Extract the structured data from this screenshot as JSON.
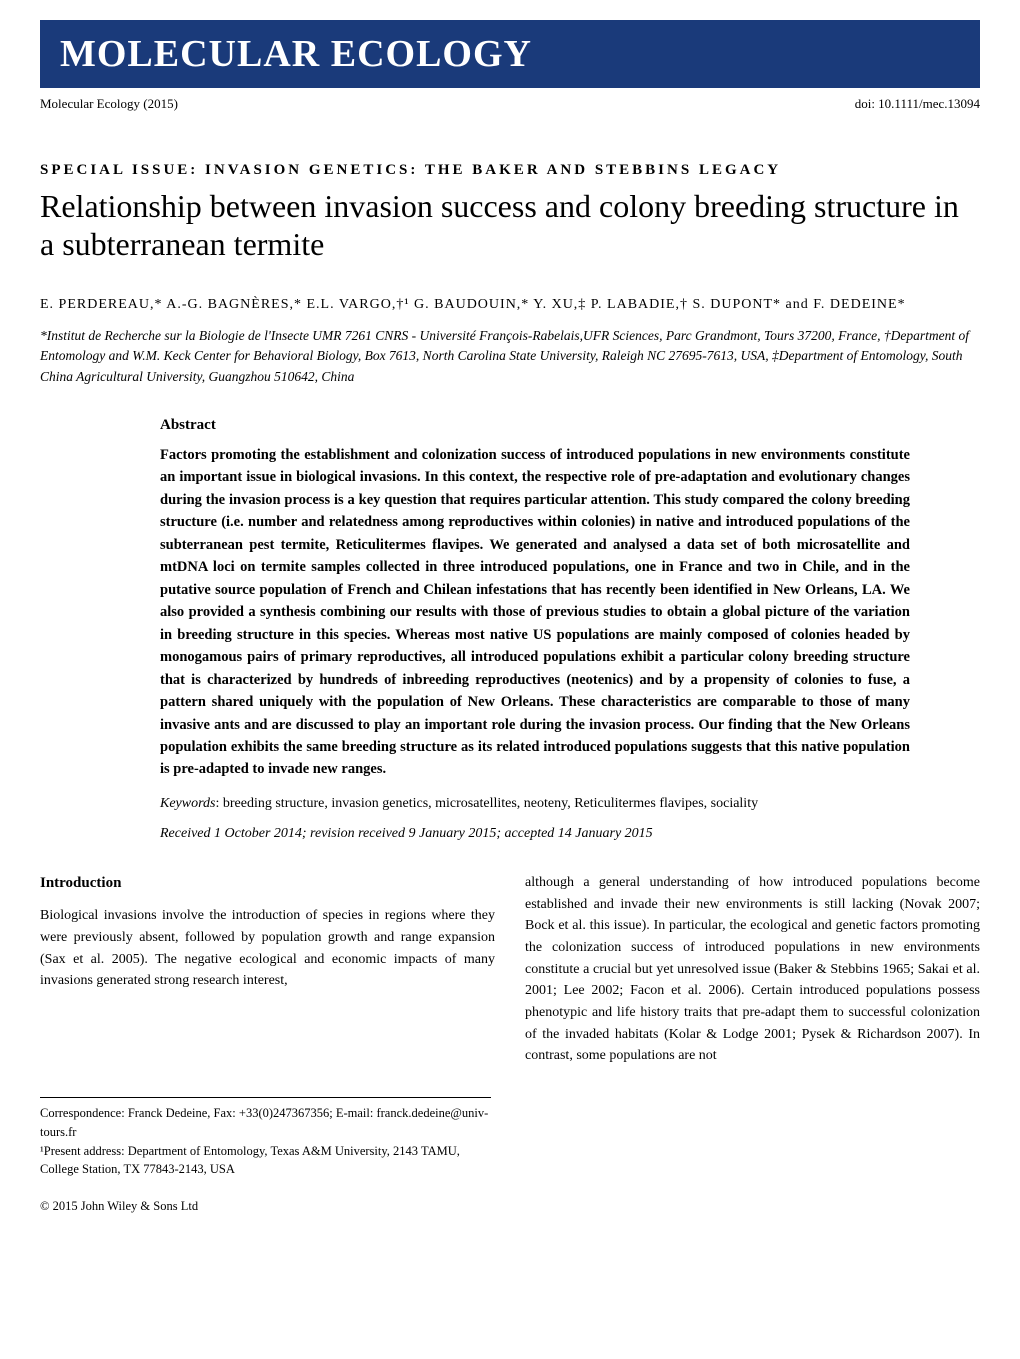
{
  "journal": {
    "banner_title": "MOLECULAR ECOLOGY",
    "name": "Molecular Ecology (2015)",
    "doi": "doi: 10.1111/mec.13094"
  },
  "article": {
    "special_issue": "SPECIAL ISSUE: INVASION GENETICS: THE BAKER AND STEBBINS LEGACY",
    "title": "Relationship between invasion success and colony breeding structure in a subterranean termite",
    "authors": "E. PERDEREAU,* A.-G. BAGNÈRES,* E.L. VARGO,†¹ G. BAUDOUIN,* Y. XU,‡ P. LABADIE,† S. DUPONT* and F. DEDEINE*",
    "affiliations": "*Institut de Recherche sur la Biologie de l'Insecte UMR 7261 CNRS - Université François-Rabelais,UFR Sciences, Parc Grandmont, Tours 37200, France, †Department of Entomology and W.M. Keck Center for Behavioral Biology, Box 7613, North Carolina State University, Raleigh NC 27695-7613, USA, ‡Department of Entomology, South China Agricultural University, Guangzhou 510642, China"
  },
  "abstract": {
    "heading": "Abstract",
    "text": "Factors promoting the establishment and colonization success of introduced populations in new environments constitute an important issue in biological invasions. In this context, the respective role of pre-adaptation and evolutionary changes during the invasion process is a key question that requires particular attention. This study compared the colony breeding structure (i.e. number and relatedness among reproductives within colonies) in native and introduced populations of the subterranean pest termite, Reticulitermes flavipes. We generated and analysed a data set of both microsatellite and mtDNA loci on termite samples collected in three introduced populations, one in France and two in Chile, and in the putative source population of French and Chilean infestations that has recently been identified in New Orleans, LA. We also provided a synthesis combining our results with those of previous studies to obtain a global picture of the variation in breeding structure in this species. Whereas most native US populations are mainly composed of colonies headed by monogamous pairs of primary reproductives, all introduced populations exhibit a particular colony breeding structure that is characterized by hundreds of inbreeding reproductives (neotenics) and by a propensity of colonies to fuse, a pattern shared uniquely with the population of New Orleans. These characteristics are comparable to those of many invasive ants and are discussed to play an important role during the invasion process. Our finding that the New Orleans population exhibits the same breeding structure as its related introduced populations suggests that this native population is pre-adapted to invade new ranges.",
    "keywords_label": "Keywords",
    "keywords": ": breeding structure, invasion genetics, microsatellites, neoteny, Reticulitermes flavipes, sociality",
    "dates": "Received 1 October 2014; revision received 9 January 2015; accepted 14 January 2015"
  },
  "body": {
    "intro_heading": "Introduction",
    "col1": "Biological invasions involve the introduction of species in regions where they were previously absent, followed by population growth and range expansion (Sax et al. 2005). The negative ecological and economic impacts of many invasions generated strong research interest,",
    "col2": "although a general understanding of how introduced populations become established and invade their new environments is still lacking (Novak 2007; Bock et al. this issue). In particular, the ecological and genetic factors promoting the colonization success of introduced populations in new environments constitute a crucial but yet unresolved issue (Baker & Stebbins 1965; Sakai et al. 2001; Lee 2002; Facon et al. 2006). Certain introduced populations possess phenotypic and life history traits that pre-adapt them to successful colonization of the invaded habitats (Kolar & Lodge 2001; Pysek & Richardson 2007). In contrast, some populations are not"
  },
  "correspondence": {
    "line1": "Correspondence: Franck Dedeine, Fax: +33(0)247367356; E-mail: franck.dedeine@univ-tours.fr",
    "line2": "¹Present address: Department of Entomology, Texas A&M University, 2143 TAMU, College Station, TX 77843-2143, USA"
  },
  "copyright": "© 2015 John Wiley & Sons Ltd"
}
